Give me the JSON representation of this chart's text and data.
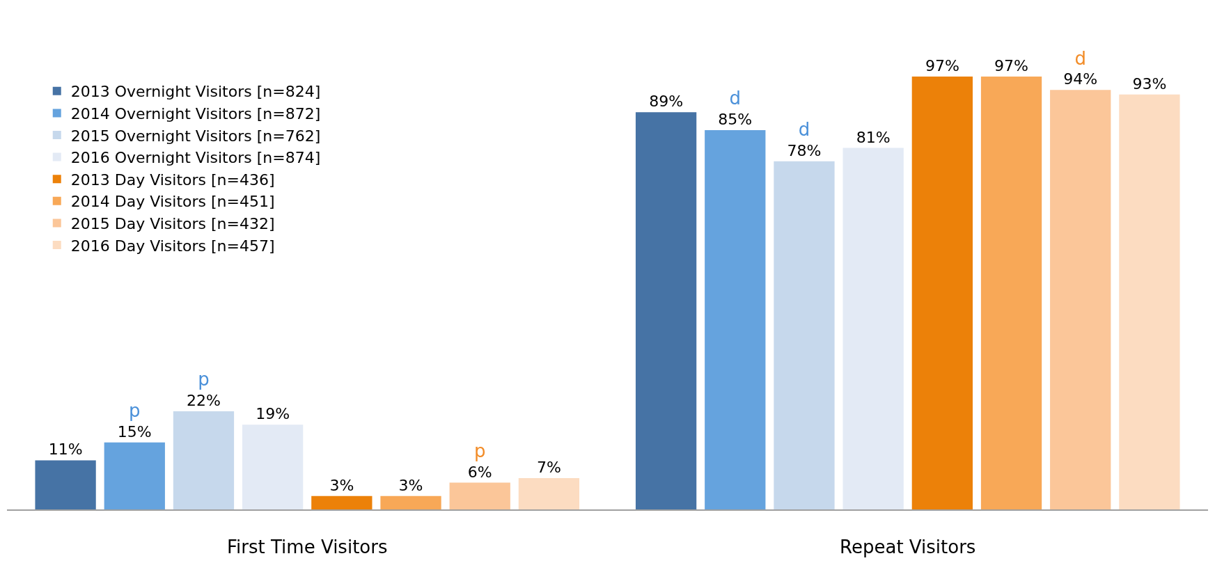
{
  "chart_data": {
    "type": "bar",
    "categories": [
      "First Time Visitors",
      "Repeat Visitors"
    ],
    "series": [
      {
        "name": "2013 Overnight Visitors [n=824]",
        "color": "#4673a5",
        "values": [
          11,
          89
        ],
        "value_labels": [
          "11%",
          "89%"
        ]
      },
      {
        "name": "2014 Overnight Visitors [n=872]",
        "color": "#65a3de",
        "values": [
          15,
          85
        ],
        "value_labels": [
          "p\n15%",
          "d\n85%"
        ]
      },
      {
        "name": "2015 Overnight Visitors [n=762]",
        "color": "#c6d8ec",
        "values": [
          22,
          78
        ],
        "value_labels": [
          "p\n22%",
          "d\n78%"
        ]
      },
      {
        "name": "2016 Overnight Visitors [n=874]",
        "color": "#e3eaf5",
        "values": [
          19,
          81
        ],
        "value_labels": [
          "19%",
          "81%"
        ]
      },
      {
        "name": "2013 Day Visitors [n=436]",
        "color": "#ec8109",
        "values": [
          3,
          97
        ],
        "value_labels": [
          "3%",
          "97%"
        ]
      },
      {
        "name": "2014 Day Visitors [n=451]",
        "color": "#f8a857",
        "values": [
          3,
          97
        ],
        "value_labels": [
          "3%",
          "97%"
        ]
      },
      {
        "name": "2015 Day Visitors [n=432]",
        "color": "#fbc699",
        "values": [
          6,
          94
        ],
        "value_labels": [
          "p\n6%",
          "d\n94%"
        ]
      },
      {
        "name": "2016 Day Visitors [n=457]",
        "color": "#fcdcc1",
        "values": [
          7,
          93
        ],
        "value_labels": [
          "7%",
          "93%"
        ]
      }
    ],
    "legend": "top left"
  }
}
